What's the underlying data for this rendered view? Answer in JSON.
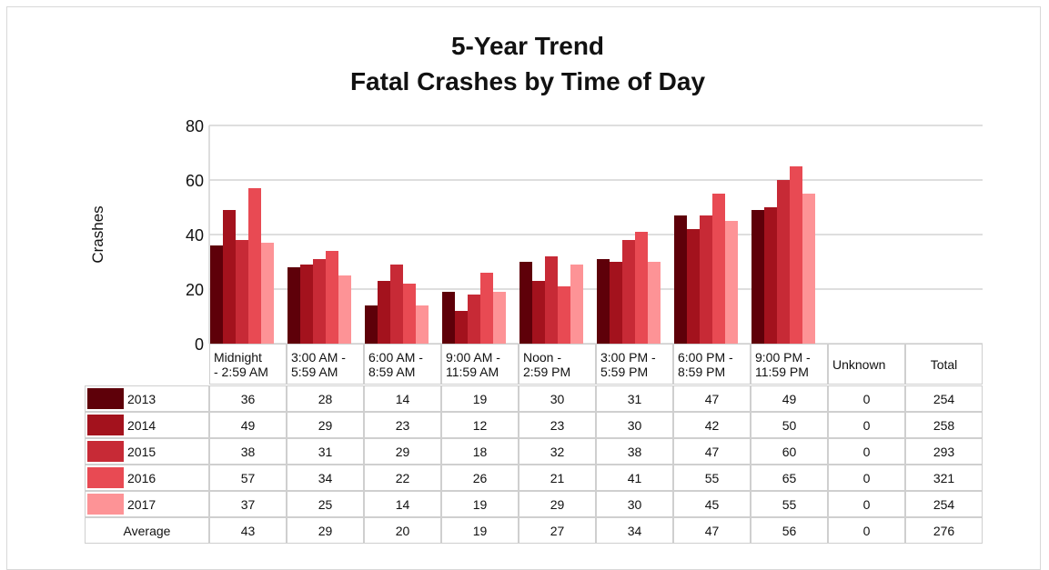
{
  "chart_data": {
    "type": "bar",
    "title": "5-Year Trend",
    "subtitle": "Fatal Crashes by Time of Day",
    "y_label": "Crashes",
    "categories": [
      "Midnight\n- 2:59 AM",
      "3:00 AM -\n5:59 AM",
      "6:00 AM -\n8:59 AM",
      "9:00 AM -\n11:59 AM",
      "Noon -\n2:59 PM",
      "3:00 PM -\n5:59 PM",
      "6:00 PM -\n8:59 PM",
      "9:00 PM -\n11:59 PM",
      "Unknown"
    ],
    "total_label": "Total",
    "series": [
      {
        "name": "2013",
        "color": "#5e0009",
        "values": [
          36,
          28,
          14,
          19,
          30,
          31,
          47,
          49,
          0
        ],
        "total": 254
      },
      {
        "name": "2014",
        "color": "#a3121d",
        "values": [
          49,
          29,
          23,
          12,
          23,
          30,
          42,
          50,
          0
        ],
        "total": 258
      },
      {
        "name": "2015",
        "color": "#c72a36",
        "values": [
          38,
          31,
          29,
          18,
          32,
          38,
          47,
          60,
          0
        ],
        "total": 293
      },
      {
        "name": "2016",
        "color": "#e84a53",
        "values": [
          57,
          34,
          22,
          26,
          21,
          41,
          55,
          65,
          0
        ],
        "total": 321
      },
      {
        "name": "2017",
        "color": "#fd9396",
        "values": [
          37,
          25,
          14,
          19,
          29,
          30,
          45,
          55,
          0
        ],
        "total": 254
      }
    ],
    "average": {
      "name": "Average",
      "values": [
        43,
        29,
        20,
        19,
        27,
        34,
        47,
        56,
        0
      ],
      "total": 276
    },
    "ylim": [
      0,
      80
    ],
    "yticks": [
      0,
      20,
      40,
      60,
      80
    ],
    "grid": true
  }
}
